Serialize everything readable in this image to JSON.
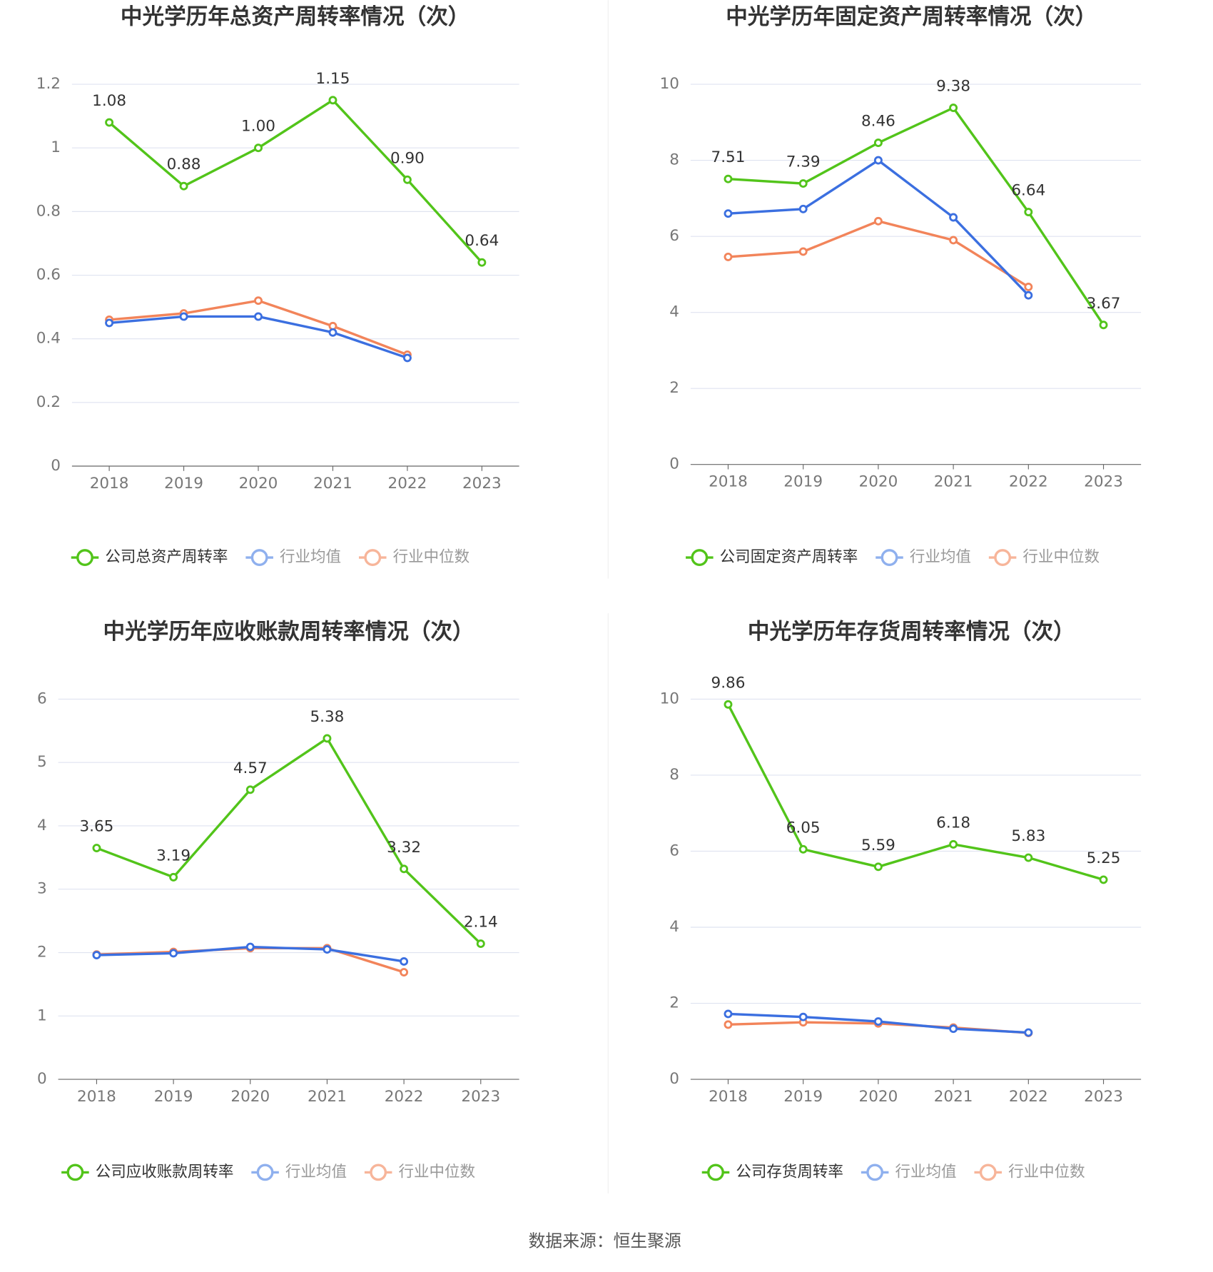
{
  "chart_data": [
    {
      "type": "line",
      "title": "中光学历年总资产周转率情况（次）",
      "categories": [
        "2018",
        "2019",
        "2020",
        "2021",
        "2022",
        "2023"
      ],
      "series": [
        {
          "name": "公司总资产周转率",
          "color": "#52c41a",
          "values": [
            1.08,
            0.88,
            1.0,
            1.15,
            0.9,
            0.64
          ],
          "value_labels": [
            "1.08",
            "0.88",
            "1.00",
            "1.15",
            "0.90",
            "0.64"
          ]
        },
        {
          "name": "行业均值",
          "color": "#3b6fe0",
          "values": [
            0.45,
            0.47,
            0.47,
            0.42,
            0.34,
            null
          ]
        },
        {
          "name": "行业中位数",
          "color": "#f2845a",
          "values": [
            0.46,
            0.48,
            0.52,
            0.44,
            0.35,
            null
          ]
        }
      ],
      "ylim": [
        0,
        1.2
      ],
      "yticks": [
        0,
        0.2,
        0.4,
        0.6,
        0.8,
        1,
        1.2
      ],
      "grid": true
    },
    {
      "type": "line",
      "title": "中光学历年固定资产周转率情况（次）",
      "categories": [
        "2018",
        "2019",
        "2020",
        "2021",
        "2022",
        "2023"
      ],
      "series": [
        {
          "name": "公司固定资产周转率",
          "color": "#52c41a",
          "values": [
            7.51,
            7.39,
            8.46,
            9.38,
            6.64,
            3.67
          ],
          "value_labels": [
            "7.51",
            "7.39",
            "8.46",
            "9.38",
            "6.64",
            "3.67"
          ]
        },
        {
          "name": "行业均值",
          "color": "#3b6fe0",
          "values": [
            6.6,
            6.72,
            8.0,
            6.5,
            4.45,
            null
          ]
        },
        {
          "name": "行业中位数",
          "color": "#f2845a",
          "values": [
            5.46,
            5.6,
            6.4,
            5.9,
            4.67,
            null
          ]
        }
      ],
      "ylim": [
        0,
        10
      ],
      "yticks": [
        0,
        2,
        4,
        6,
        8,
        10
      ],
      "grid": true
    },
    {
      "type": "line",
      "title": "中光学历年应收账款周转率情况（次）",
      "categories": [
        "2018",
        "2019",
        "2020",
        "2021",
        "2022",
        "2023"
      ],
      "series": [
        {
          "name": "公司应收账款周转率",
          "color": "#52c41a",
          "values": [
            3.65,
            3.19,
            4.57,
            5.38,
            3.32,
            2.14
          ],
          "value_labels": [
            "3.65",
            "3.19",
            "4.57",
            "5.38",
            "3.32",
            "2.14"
          ]
        },
        {
          "name": "行业均值",
          "color": "#3b6fe0",
          "values": [
            1.96,
            1.99,
            2.09,
            2.05,
            1.86,
            null
          ]
        },
        {
          "name": "行业中位数",
          "color": "#f2845a",
          "values": [
            1.97,
            2.01,
            2.07,
            2.07,
            1.69,
            null
          ]
        }
      ],
      "ylim": [
        0,
        6
      ],
      "yticks": [
        0,
        1,
        2,
        3,
        4,
        5,
        6
      ],
      "grid": true
    },
    {
      "type": "line",
      "title": "中光学历年存货周转率情况（次）",
      "categories": [
        "2018",
        "2019",
        "2020",
        "2021",
        "2022",
        "2023"
      ],
      "series": [
        {
          "name": "公司存货周转率",
          "color": "#52c41a",
          "values": [
            9.86,
            6.05,
            5.59,
            6.18,
            5.83,
            5.25
          ],
          "value_labels": [
            "9.86",
            "6.05",
            "5.59",
            "6.18",
            "5.83",
            "5.25"
          ]
        },
        {
          "name": "行业均值",
          "color": "#3b6fe0",
          "values": [
            1.72,
            1.64,
            1.52,
            1.33,
            1.23,
            null
          ]
        },
        {
          "name": "行业中位数",
          "color": "#f2845a",
          "values": [
            1.44,
            1.5,
            1.47,
            1.36,
            1.22,
            null
          ]
        }
      ],
      "ylim": [
        0,
        10
      ],
      "yticks": [
        0,
        2,
        4,
        6,
        8,
        10
      ],
      "grid": true
    }
  ],
  "source": "数据来源：恒生聚源"
}
